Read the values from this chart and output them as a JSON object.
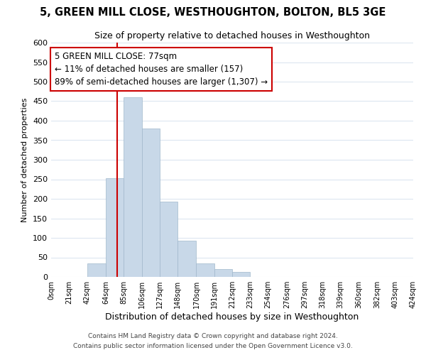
{
  "title": "5, GREEN MILL CLOSE, WESTHOUGHTON, BOLTON, BL5 3GE",
  "subtitle": "Size of property relative to detached houses in Westhoughton",
  "xlabel": "Distribution of detached houses by size in Westhoughton",
  "ylabel": "Number of detached properties",
  "bar_edges": [
    0,
    21,
    42,
    64,
    85,
    106,
    127,
    148,
    170,
    191,
    212,
    233,
    254,
    276,
    297,
    318,
    339,
    360,
    382,
    403,
    424
  ],
  "bar_heights": [
    0,
    0,
    35,
    253,
    460,
    380,
    192,
    93,
    35,
    20,
    12,
    0,
    0,
    0,
    0,
    0,
    0,
    0,
    0,
    0
  ],
  "bar_color": "#c8d8e8",
  "bar_edge_color": "#a0b8cc",
  "vline_x": 77,
  "vline_color": "#cc0000",
  "annotation_line1": "5 GREEN MILL CLOSE: 77sqm",
  "annotation_line2": "← 11% of detached houses are smaller (157)",
  "annotation_line3": "89% of semi-detached houses are larger (1,307) →",
  "annotation_box_color": "#ffffff",
  "annotation_box_edge": "#cc0000",
  "ylim": [
    0,
    600
  ],
  "yticks": [
    0,
    50,
    100,
    150,
    200,
    250,
    300,
    350,
    400,
    450,
    500,
    550,
    600
  ],
  "xtick_labels": [
    "0sqm",
    "21sqm",
    "42sqm",
    "64sqm",
    "85sqm",
    "106sqm",
    "127sqm",
    "148sqm",
    "170sqm",
    "191sqm",
    "212sqm",
    "233sqm",
    "254sqm",
    "276sqm",
    "297sqm",
    "318sqm",
    "339sqm",
    "360sqm",
    "382sqm",
    "403sqm",
    "424sqm"
  ],
  "footer1": "Contains HM Land Registry data © Crown copyright and database right 2024.",
  "footer2": "Contains public sector information licensed under the Open Government Licence v3.0.",
  "bg_color": "#ffffff",
  "grid_color": "#dce6f0",
  "title_fontsize": 10.5,
  "subtitle_fontsize": 9,
  "annotation_fontsize": 8.5,
  "ylabel_fontsize": 8,
  "xlabel_fontsize": 9
}
